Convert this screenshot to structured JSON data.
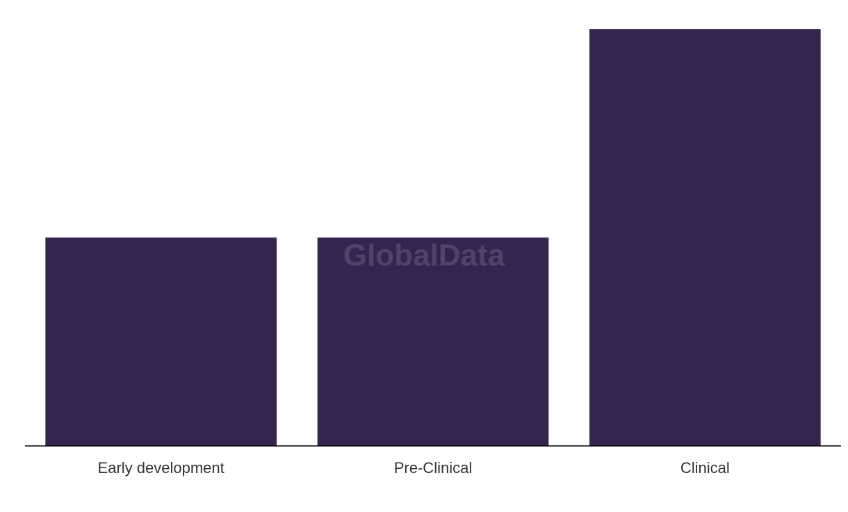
{
  "chart_data": {
    "type": "bar",
    "categories": [
      "Early development",
      "Pre-Clinical",
      "Clinical"
    ],
    "values": [
      1,
      1,
      2
    ],
    "color": "#35244f",
    "ylim": [
      0,
      2
    ],
    "watermark": "GlobalData"
  }
}
